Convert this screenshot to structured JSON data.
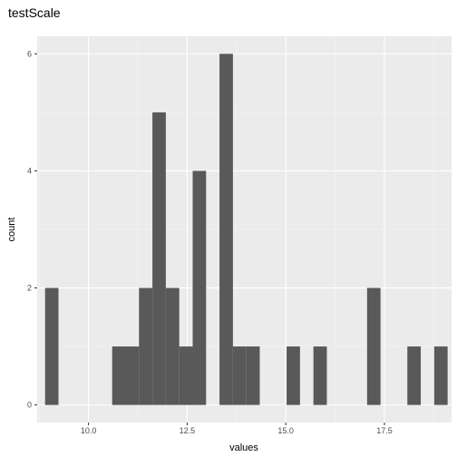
{
  "chart_data": {
    "type": "bar",
    "title": "testScale",
    "xlabel": "values",
    "ylabel": "count",
    "xlim": [
      8.7,
      19.2
    ],
    "ylim": [
      -0.3,
      6.3
    ],
    "x_ticks": [
      {
        "value": 10.0,
        "label": "10.0"
      },
      {
        "value": 12.5,
        "label": "12.5"
      },
      {
        "value": 15.0,
        "label": "15.0"
      },
      {
        "value": 17.5,
        "label": "17.5"
      }
    ],
    "y_ticks": [
      {
        "value": 0,
        "label": "0"
      },
      {
        "value": 2,
        "label": "2"
      },
      {
        "value": 4,
        "label": "4"
      },
      {
        "value": 6,
        "label": "6"
      }
    ],
    "bin_width": 0.34,
    "bins": [
      {
        "x0": 8.9,
        "x1": 9.24,
        "count": 2
      },
      {
        "x0": 9.24,
        "x1": 9.58,
        "count": 0
      },
      {
        "x0": 9.58,
        "x1": 9.92,
        "count": 0
      },
      {
        "x0": 9.92,
        "x1": 10.26,
        "count": 0
      },
      {
        "x0": 10.26,
        "x1": 10.6,
        "count": 0
      },
      {
        "x0": 10.6,
        "x1": 10.94,
        "count": 1
      },
      {
        "x0": 10.94,
        "x1": 11.28,
        "count": 1
      },
      {
        "x0": 11.28,
        "x1": 11.62,
        "count": 2
      },
      {
        "x0": 11.62,
        "x1": 11.96,
        "count": 5
      },
      {
        "x0": 11.96,
        "x1": 12.3,
        "count": 2
      },
      {
        "x0": 12.3,
        "x1": 12.64,
        "count": 1
      },
      {
        "x0": 12.64,
        "x1": 12.98,
        "count": 4
      },
      {
        "x0": 12.98,
        "x1": 13.32,
        "count": 0
      },
      {
        "x0": 13.32,
        "x1": 13.66,
        "count": 6
      },
      {
        "x0": 13.66,
        "x1": 14.0,
        "count": 1
      },
      {
        "x0": 14.0,
        "x1": 14.34,
        "count": 1
      },
      {
        "x0": 14.34,
        "x1": 14.68,
        "count": 0
      },
      {
        "x0": 14.68,
        "x1": 15.02,
        "count": 0
      },
      {
        "x0": 15.02,
        "x1": 15.36,
        "count": 1
      },
      {
        "x0": 15.36,
        "x1": 15.7,
        "count": 0
      },
      {
        "x0": 15.7,
        "x1": 16.04,
        "count": 1
      },
      {
        "x0": 16.04,
        "x1": 16.38,
        "count": 0
      },
      {
        "x0": 16.38,
        "x1": 16.72,
        "count": 0
      },
      {
        "x0": 16.72,
        "x1": 17.06,
        "count": 0
      },
      {
        "x0": 17.06,
        "x1": 17.4,
        "count": 2
      },
      {
        "x0": 17.4,
        "x1": 17.74,
        "count": 0
      },
      {
        "x0": 17.74,
        "x1": 18.08,
        "count": 0
      },
      {
        "x0": 18.08,
        "x1": 18.42,
        "count": 1
      },
      {
        "x0": 18.42,
        "x1": 18.76,
        "count": 0
      },
      {
        "x0": 18.76,
        "x1": 19.1,
        "count": 1
      }
    ],
    "grid": true,
    "colors": {
      "panel_background": "#ebebeb",
      "grid_major": "#ffffff",
      "grid_minor": "#f5f5f5",
      "bar_fill": "#595959",
      "tick": "#333333",
      "tick_label": "#4d4d4d",
      "text": "#000000"
    }
  }
}
